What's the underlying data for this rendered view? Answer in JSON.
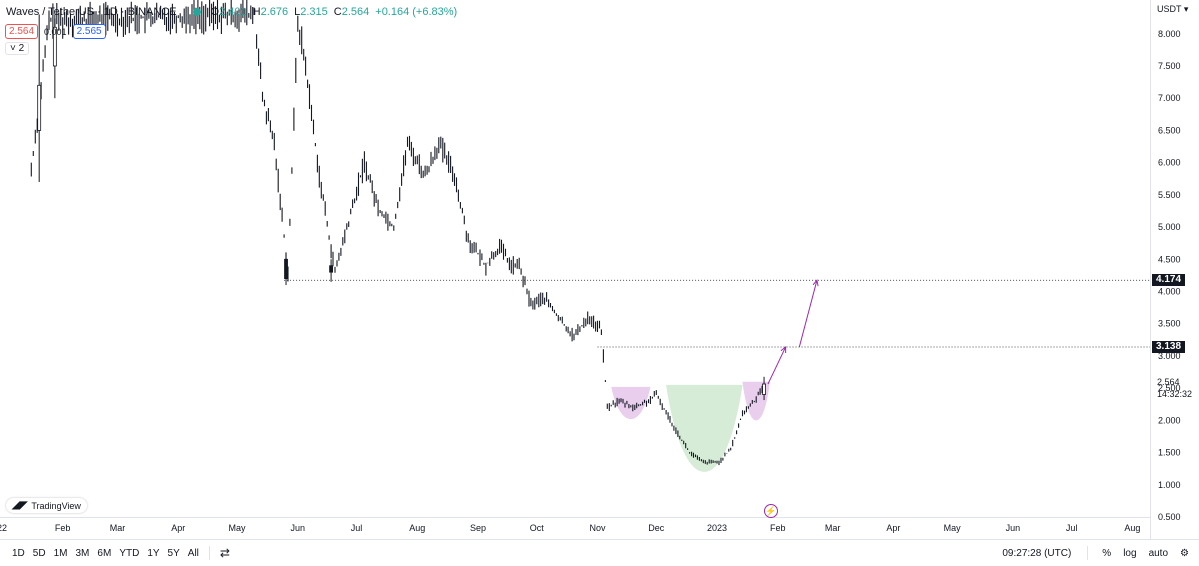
{
  "legend": {
    "title": "Waves / TetherUS · 1D · BINANCE",
    "open_label": "O",
    "open": "2.401",
    "high_label": "H",
    "high": "2.676",
    "low_label": "L",
    "low": "2.315",
    "close_label": "C",
    "close": "2.564",
    "change": "+0.164 (+6.83%)",
    "sell_price": "2.564",
    "spread": "0.001",
    "buy_price": "2.565",
    "indicators_count": "˅ 2"
  },
  "axis": {
    "currency": "USDT ▾",
    "last_price": "2.564",
    "countdown": "14:32:32",
    "level_high": "4.174",
    "level_low": "3.138"
  },
  "logo_text": "TradingView",
  "lightning": "⚡",
  "toolbar": {
    "ranges": [
      "1D",
      "5D",
      "1M",
      "3M",
      "6M",
      "YTD",
      "1Y",
      "5Y",
      "All"
    ],
    "compare_icon": "⇄",
    "time": "09:27:28 (UTC)",
    "percent": "%",
    "log": "log",
    "auto": "auto",
    "settings_icon": "⚙"
  },
  "colors": {
    "up": "#26a69a",
    "candle": "#131722",
    "pattern_purple": "#9c27b0",
    "pattern_fill_purple": "#e1bee7",
    "pattern_fill_green": "#c8e6c9"
  },
  "chart_data": {
    "type": "candlestick",
    "symbol": "Waves / TetherUS",
    "interval": "1D",
    "exchange": "BINANCE",
    "y_ticks": [
      0.5,
      1.0,
      1.5,
      2.0,
      2.5,
      3.0,
      3.5,
      4.0,
      4.5,
      5.0,
      5.5,
      6.0,
      6.5,
      7.0,
      7.5,
      8.0
    ],
    "y_tick_labels": [
      "0.500",
      "1.000",
      "1.500",
      "2.000",
      "2.500",
      "3.000",
      "3.500",
      "4.000",
      "4.500",
      "5.000",
      "5.500",
      "6.000",
      "6.500",
      "7.000",
      "7.500",
      "8.000"
    ],
    "x_tick_labels": [
      "22",
      "Feb",
      "Mar",
      "Apr",
      "May",
      "Jun",
      "Jul",
      "Aug",
      "Sep",
      "Oct",
      "Nov",
      "Dec",
      "2023",
      "Feb",
      "Mar",
      "Apr",
      "May",
      "Jun",
      "Jul",
      "Aug"
    ],
    "x_tick_dates": [
      "2022-01-01",
      "2022-02-01",
      "2022-03-01",
      "2022-04-01",
      "2022-05-01",
      "2022-06-01",
      "2022-07-01",
      "2022-08-01",
      "2022-09-01",
      "2022-10-01",
      "2022-11-01",
      "2022-12-01",
      "2023-01-01",
      "2023-02-01",
      "2023-03-01",
      "2023-04-01",
      "2023-05-01",
      "2023-06-01",
      "2023-07-01",
      "2023-08-01"
    ],
    "price_path": [
      [
        "2022-01-16",
        5.9
      ],
      [
        "2022-01-25",
        8.2
      ],
      [
        "2022-05-10",
        8.3
      ],
      [
        "2022-05-14",
        7.0
      ],
      [
        "2022-05-20",
        6.3
      ],
      [
        "2022-05-27",
        4.3
      ],
      [
        "2022-06-01",
        8.2
      ],
      [
        "2022-06-05",
        7.5
      ],
      [
        "2022-06-12",
        5.8
      ],
      [
        "2022-06-20",
        4.3
      ],
      [
        "2022-06-28",
        5.2
      ],
      [
        "2022-07-05",
        6.0
      ],
      [
        "2022-07-12",
        5.3
      ],
      [
        "2022-07-20",
        5.0
      ],
      [
        "2022-07-27",
        6.3
      ],
      [
        "2022-08-05",
        5.8
      ],
      [
        "2022-08-12",
        6.3
      ],
      [
        "2022-08-20",
        5.8
      ],
      [
        "2022-08-27",
        4.8
      ],
      [
        "2022-09-05",
        4.4
      ],
      [
        "2022-09-12",
        4.7
      ],
      [
        "2022-09-18",
        4.4
      ],
      [
        "2022-09-22",
        4.4
      ],
      [
        "2022-09-28",
        3.8
      ],
      [
        "2022-10-05",
        3.9
      ],
      [
        "2022-10-12",
        3.6
      ],
      [
        "2022-10-20",
        3.3
      ],
      [
        "2022-10-27",
        3.6
      ],
      [
        "2022-11-03",
        3.4
      ],
      [
        "2022-11-06",
        2.2
      ],
      [
        "2022-11-12",
        2.3
      ],
      [
        "2022-11-20",
        2.2
      ],
      [
        "2022-11-27",
        2.3
      ],
      [
        "2022-12-01",
        2.4
      ],
      [
        "2022-12-10",
        1.9
      ],
      [
        "2022-12-18",
        1.5
      ],
      [
        "2022-12-25",
        1.35
      ],
      [
        "2023-01-02",
        1.35
      ],
      [
        "2023-01-08",
        1.55
      ],
      [
        "2023-01-14",
        2.1
      ],
      [
        "2023-01-20",
        2.3
      ],
      [
        "2023-01-25",
        2.564
      ]
    ],
    "candles": [
      {
        "date": "2022-01-20",
        "o": 6.5,
        "h": 8.3,
        "l": 5.7,
        "c": 7.2
      },
      {
        "date": "2022-01-28",
        "o": 7.5,
        "h": 8.3,
        "l": 7.0,
        "c": 8.1
      },
      {
        "date": "2022-05-26",
        "o": 4.5,
        "h": 4.6,
        "l": 4.1,
        "c": 4.2
      },
      {
        "date": "2022-06-18",
        "o": 4.4,
        "h": 4.5,
        "l": 4.15,
        "c": 4.3
      },
      {
        "date": "2023-01-25",
        "o": 2.401,
        "h": 2.676,
        "l": 2.315,
        "c": 2.564
      }
    ],
    "drawings": {
      "horizontal_levels": [
        4.174,
        3.138
      ],
      "pattern": "cup and handle",
      "left_handle": {
        "from": "2022-11-08",
        "to": "2022-11-28",
        "top": 2.52,
        "bottom": 2.02
      },
      "cup": {
        "from": "2022-12-06",
        "to": "2023-01-14",
        "top": 2.55,
        "bottom": 1.2
      },
      "right_handle": {
        "from": "2023-01-14",
        "to": "2023-01-28",
        "top": 2.6,
        "bottom": 2.0
      },
      "projection_arrows": [
        {
          "from": [
            "2023-01-27",
            2.564
          ],
          "to": [
            "2023-02-05",
            3.138
          ]
        },
        {
          "from": [
            "2023-02-12",
            3.138
          ],
          "to": [
            "2023-02-21",
            4.174
          ]
        }
      ]
    },
    "ylim": [
      0.5,
      8.4
    ],
    "xlim": [
      "2021-12-31",
      "2023-08-10"
    ],
    "grid": false,
    "legend_position": "top-left"
  }
}
